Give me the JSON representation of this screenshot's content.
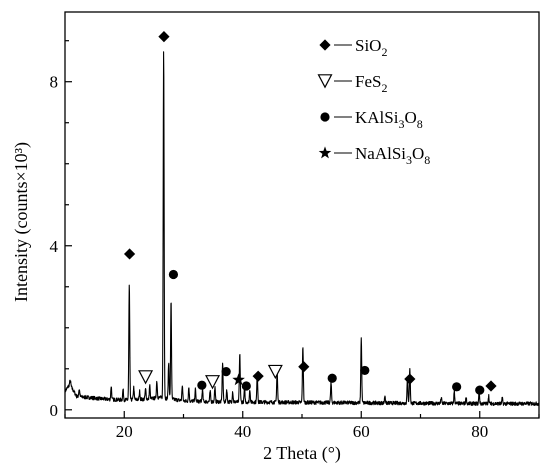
{
  "chart_data": {
    "type": "line",
    "title": "",
    "xlabel": "2 Theta (°)",
    "ylabel": "Intensity (counts×10³)",
    "xlim": [
      10,
      90
    ],
    "ylim": [
      -0.2,
      9.7
    ],
    "xticks": [
      20,
      40,
      60,
      80
    ],
    "yticks": [
      0,
      4,
      8
    ],
    "grid": false,
    "legend_position": "top-right",
    "colors": {
      "line": "#000000",
      "axis": "#000000",
      "background": "#ffffff"
    },
    "background_level": 0.18,
    "baseline_points": [
      [
        10.0,
        0.45
      ],
      [
        10.8,
        0.62
      ],
      [
        12.0,
        0.32
      ],
      [
        14.0,
        0.3
      ],
      [
        16.0,
        0.27
      ],
      [
        18.0,
        0.25
      ],
      [
        20.0,
        0.24
      ],
      [
        24.0,
        0.26
      ],
      [
        26.0,
        0.3
      ],
      [
        30.0,
        0.22
      ],
      [
        34.0,
        0.2
      ],
      [
        40.0,
        0.19
      ],
      [
        50.0,
        0.18
      ],
      [
        60.0,
        0.17
      ],
      [
        70.0,
        0.16
      ],
      [
        80.0,
        0.15
      ],
      [
        90.0,
        0.15
      ]
    ],
    "series": [
      {
        "values": [
          {
            "x": 10.9,
            "y": 0.7,
            "w": 0.15
          },
          {
            "x": 12.4,
            "y": 0.5,
            "w": 0.15
          },
          {
            "x": 17.8,
            "y": 0.58,
            "w": 0.12
          },
          {
            "x": 19.8,
            "y": 0.5,
            "w": 0.12
          },
          {
            "x": 20.85,
            "y": 3.05,
            "w": 0.13
          },
          {
            "x": 21.6,
            "y": 0.55,
            "w": 0.12
          },
          {
            "x": 22.6,
            "y": 0.45,
            "w": 0.12
          },
          {
            "x": 23.6,
            "y": 0.5,
            "w": 0.14
          },
          {
            "x": 24.3,
            "y": 0.6,
            "w": 0.12
          },
          {
            "x": 25.5,
            "y": 0.7,
            "w": 0.13
          },
          {
            "x": 26.65,
            "y": 8.8,
            "w": 0.13
          },
          {
            "x": 27.5,
            "y": 1.15,
            "w": 0.13
          },
          {
            "x": 27.9,
            "y": 2.7,
            "w": 0.12
          },
          {
            "x": 29.8,
            "y": 0.6,
            "w": 0.12
          },
          {
            "x": 30.9,
            "y": 0.55,
            "w": 0.12
          },
          {
            "x": 32.0,
            "y": 0.5,
            "w": 0.12
          },
          {
            "x": 33.2,
            "y": 0.5,
            "w": 0.12
          },
          {
            "x": 34.5,
            "y": 0.45,
            "w": 0.12
          },
          {
            "x": 35.3,
            "y": 0.55,
            "w": 0.12
          },
          {
            "x": 36.6,
            "y": 1.15,
            "w": 0.13
          },
          {
            "x": 37.3,
            "y": 0.5,
            "w": 0.12
          },
          {
            "x": 38.3,
            "y": 0.45,
            "w": 0.12
          },
          {
            "x": 39.5,
            "y": 1.35,
            "w": 0.13
          },
          {
            "x": 40.3,
            "y": 0.55,
            "w": 0.12
          },
          {
            "x": 41.2,
            "y": 0.5,
            "w": 0.12
          },
          {
            "x": 42.45,
            "y": 0.85,
            "w": 0.13
          },
          {
            "x": 45.8,
            "y": 0.95,
            "w": 0.13
          },
          {
            "x": 50.15,
            "y": 1.55,
            "w": 0.13
          },
          {
            "x": 54.9,
            "y": 0.65,
            "w": 0.13
          },
          {
            "x": 60.0,
            "y": 1.75,
            "w": 0.13
          },
          {
            "x": 64.0,
            "y": 0.35,
            "w": 0.12
          },
          {
            "x": 67.8,
            "y": 0.75,
            "w": 0.13
          },
          {
            "x": 68.2,
            "y": 1.0,
            "w": 0.13
          },
          {
            "x": 73.5,
            "y": 0.3,
            "w": 0.12
          },
          {
            "x": 75.7,
            "y": 0.45,
            "w": 0.12
          },
          {
            "x": 77.7,
            "y": 0.3,
            "w": 0.12
          },
          {
            "x": 79.9,
            "y": 0.45,
            "w": 0.12
          },
          {
            "x": 81.5,
            "y": 0.35,
            "w": 0.12
          },
          {
            "x": 83.8,
            "y": 0.28,
            "w": 0.12
          }
        ]
      }
    ],
    "phases": [
      {
        "name": "SiO",
        "subscript": "2",
        "marker": "diamond",
        "color": "#000000"
      },
      {
        "name": "FeS",
        "subscript": "2",
        "marker": "triangle-down-open",
        "color": "#000000"
      },
      {
        "name": "KAlSi",
        "subscript": "3",
        "name2": "O",
        "subscript2": "8",
        "marker": "circle",
        "color": "#000000"
      },
      {
        "name": "NaAlSi",
        "subscript": "3",
        "name2": "O",
        "subscript2": "8",
        "marker": "star",
        "color": "#000000"
      }
    ],
    "peak_markers": [
      {
        "phase": 0,
        "x": 20.9,
        "y": 3.8
      },
      {
        "phase": 0,
        "x": 26.7,
        "y": 9.1
      },
      {
        "phase": 0,
        "x": 42.6,
        "y": 0.82
      },
      {
        "phase": 0,
        "x": 50.3,
        "y": 1.05
      },
      {
        "phase": 0,
        "x": 68.2,
        "y": 0.75
      },
      {
        "phase": 0,
        "x": 81.9,
        "y": 0.58
      },
      {
        "phase": 1,
        "x": 23.6,
        "y": 0.8
      },
      {
        "phase": 1,
        "x": 34.9,
        "y": 0.68
      },
      {
        "phase": 1,
        "x": 45.5,
        "y": 0.93
      },
      {
        "phase": 2,
        "x": 28.3,
        "y": 3.3
      },
      {
        "phase": 2,
        "x": 33.1,
        "y": 0.6
      },
      {
        "phase": 2,
        "x": 37.2,
        "y": 0.93
      },
      {
        "phase": 2,
        "x": 40.6,
        "y": 0.58
      },
      {
        "phase": 2,
        "x": 55.1,
        "y": 0.77
      },
      {
        "phase": 2,
        "x": 60.6,
        "y": 0.96
      },
      {
        "phase": 2,
        "x": 76.1,
        "y": 0.56
      },
      {
        "phase": 2,
        "x": 80.0,
        "y": 0.48
      },
      {
        "phase": 3,
        "x": 39.3,
        "y": 0.73
      }
    ]
  }
}
